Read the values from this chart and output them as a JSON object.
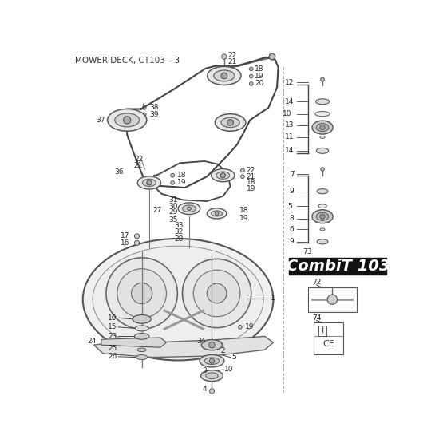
{
  "title": "MOWER DECK, CT103 – 3",
  "bg_color": "#ffffff",
  "combit_text": "CombiT 103",
  "line_color": "#555555",
  "text_color": "#222222"
}
